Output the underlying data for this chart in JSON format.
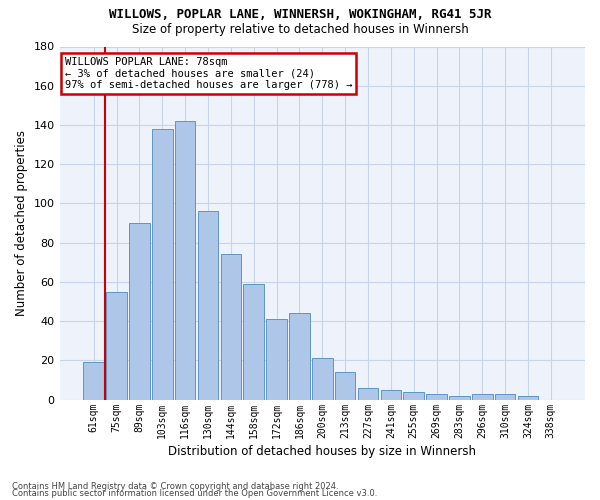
{
  "title": "WILLOWS, POPLAR LANE, WINNERSH, WOKINGHAM, RG41 5JR",
  "subtitle": "Size of property relative to detached houses in Winnersh",
  "xlabel": "Distribution of detached houses by size in Winnersh",
  "ylabel": "Number of detached properties",
  "categories": [
    "61sqm",
    "75sqm",
    "89sqm",
    "103sqm",
    "116sqm",
    "130sqm",
    "144sqm",
    "158sqm",
    "172sqm",
    "186sqm",
    "200sqm",
    "213sqm",
    "227sqm",
    "241sqm",
    "255sqm",
    "269sqm",
    "283sqm",
    "296sqm",
    "310sqm",
    "324sqm",
    "338sqm"
  ],
  "values": [
    19,
    55,
    90,
    138,
    142,
    96,
    74,
    59,
    41,
    44,
    21,
    14,
    6,
    5,
    4,
    3,
    2,
    3,
    3,
    2,
    0
  ],
  "bar_color": "#aec6e8",
  "bar_edge_color": "#5a96c8",
  "annotation_text": "WILLOWS POPLAR LANE: 78sqm\n← 3% of detached houses are smaller (24)\n97% of semi-detached houses are larger (778) →",
  "annotation_box_color": "#ffffff",
  "annotation_box_edge_color": "#cc0000",
  "vline_color": "#cc0000",
  "footer1": "Contains HM Land Registry data © Crown copyright and database right 2024.",
  "footer2": "Contains public sector information licensed under the Open Government Licence v3.0.",
  "bg_color": "#eef2fa",
  "grid_color": "#c8d4e8",
  "ylim": [
    0,
    180
  ],
  "yticks": [
    0,
    20,
    40,
    60,
    80,
    100,
    120,
    140,
    160,
    180
  ]
}
